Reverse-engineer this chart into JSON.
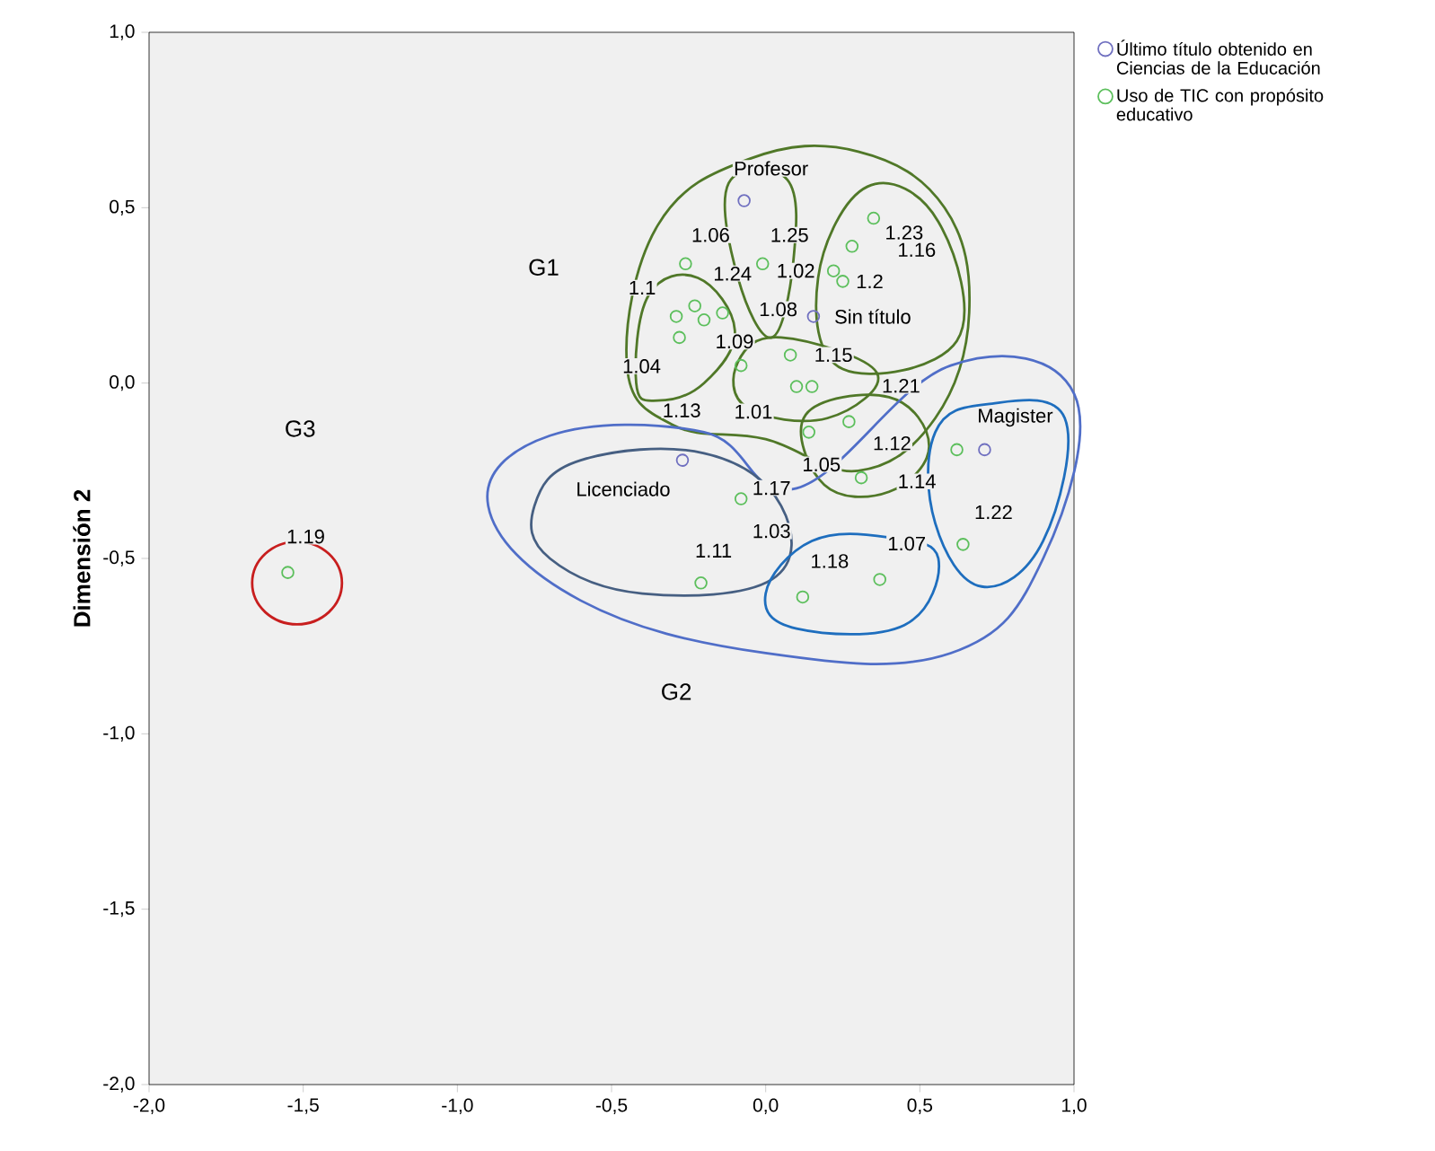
{
  "chart_data": {
    "type": "scatter",
    "ylabel": "Dimensión 2",
    "xlim": [
      -2,
      1
    ],
    "ylim": [
      -2,
      1
    ],
    "xticks": [
      {
        "value": -2,
        "label": "-2,0"
      },
      {
        "value": -1.5,
        "label": "-1,5"
      },
      {
        "value": -1,
        "label": "-1,0"
      },
      {
        "value": -0.5,
        "label": "-0,5"
      },
      {
        "value": 0,
        "label": "0,0"
      },
      {
        "value": 0.5,
        "label": "0,5"
      },
      {
        "value": 1,
        "label": "1,0"
      }
    ],
    "yticks": [
      {
        "value": -2,
        "label": "-2,0"
      },
      {
        "value": -1.5,
        "label": "-1,5"
      },
      {
        "value": -1,
        "label": "-1,0"
      },
      {
        "value": -0.5,
        "label": "-0,5"
      },
      {
        "value": 0,
        "label": "0,0"
      },
      {
        "value": 0.5,
        "label": "0,5"
      },
      {
        "value": 1,
        "label": "1,0"
      }
    ],
    "marker": "circle",
    "legend": "top right",
    "series": [
      {
        "name": "Último título obtenido en Ciencias de la Educación",
        "color": "#7070c0",
        "x": [
          -0.07,
          0.155,
          -0.27,
          0.71
        ],
        "values": [
          0.52,
          0.19,
          -0.22,
          -0.19
        ]
      },
      {
        "name": "Uso de TIC con propósito educativo",
        "color": "#5cbf5c",
        "x": [
          0.35,
          0.28,
          -0.26,
          -0.01,
          0.22,
          0.25,
          -0.29,
          -0.23,
          -0.2,
          -0.14,
          -0.28,
          -0.08,
          0.08,
          0.1,
          0.15,
          0.27,
          -0.08,
          -0.21,
          0.14,
          0.12,
          0.31,
          0.62,
          0.64,
          0.37,
          -1.55
        ],
        "values": [
          0.47,
          0.39,
          0.34,
          0.34,
          0.32,
          0.29,
          0.19,
          0.22,
          0.18,
          0.2,
          0.13,
          0.05,
          0.08,
          -0.01,
          -0.01,
          -0.11,
          -0.33,
          -0.57,
          -0.14,
          -0.61,
          -0.27,
          -0.19,
          -0.46,
          -0.56,
          -0.54
        ]
      }
    ],
    "annotations": [
      {
        "text": "Profesor",
        "x": -0.07,
        "y": 0.52
      },
      {
        "text": "Sin título",
        "x": 0.155,
        "y": 0.19
      },
      {
        "text": "Licenciado",
        "x": -0.27,
        "y": -0.22
      },
      {
        "text": "Magister",
        "x": 0.71,
        "y": -0.19
      },
      {
        "text": "1.01",
        "x": 0.1,
        "y": -0.01
      },
      {
        "text": "1.02",
        "x": 0.22,
        "y": 0.32
      },
      {
        "text": "1.03",
        "x": -0.08,
        "y": -0.33
      },
      {
        "text": "1.04",
        "x": -0.28,
        "y": 0.13
      },
      {
        "text": "1.05",
        "x": 0.14,
        "y": -0.14
      },
      {
        "text": "1.06",
        "x": -0.26,
        "y": 0.34
      },
      {
        "text": "1.07",
        "x": 0.37,
        "y": -0.56
      },
      {
        "text": "1.08",
        "x": -0.14,
        "y": 0.2
      },
      {
        "text": "1.09",
        "x": -0.2,
        "y": 0.18
      },
      {
        "text": "1.1",
        "x": -0.29,
        "y": 0.19
      },
      {
        "text": "1.11",
        "x": -0.21,
        "y": -0.57
      },
      {
        "text": "1.12",
        "x": 0.27,
        "y": -0.11
      },
      {
        "text": "1.13",
        "x": -0.08,
        "y": 0.05
      },
      {
        "text": "1.14",
        "x": 0.31,
        "y": -0.27
      },
      {
        "text": "1.15",
        "x": 0.08,
        "y": 0.08
      },
      {
        "text": "1.16",
        "x": 0.28,
        "y": 0.39
      },
      {
        "text": "1.17",
        "x": -0.08,
        "y": -0.33
      },
      {
        "text": "1.18",
        "x": 0.12,
        "y": -0.61
      },
      {
        "text": "1.19",
        "x": -1.55,
        "y": -0.54
      },
      {
        "text": "1.2",
        "x": 0.25,
        "y": 0.29
      },
      {
        "text": "1.21",
        "x": 0.27,
        "y": -0.11
      },
      {
        "text": "1.22",
        "x": 0.64,
        "y": -0.46
      },
      {
        "text": "1.23",
        "x": 0.35,
        "y": 0.47
      },
      {
        "text": "1.24",
        "x": -0.23,
        "y": 0.22
      },
      {
        "text": "1.25",
        "x": -0.01,
        "y": 0.34
      },
      "G1",
      "G2",
      "G3"
    ]
  }
}
